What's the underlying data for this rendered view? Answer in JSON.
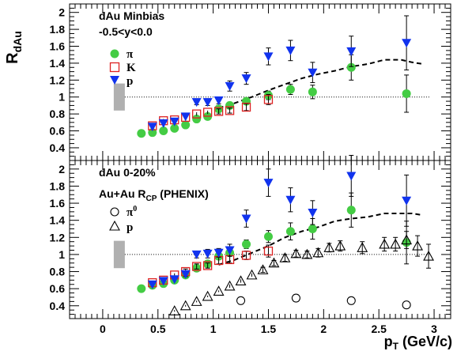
{
  "chart_data": {
    "type": "scatter",
    "ylabel": {
      "main": "R",
      "sub": "dAu"
    },
    "xlabel": {
      "main": "p",
      "sub": "T",
      "rest": " (GeV/c)"
    },
    "xlim": [
      -0.3,
      3.15
    ],
    "xticks": [
      "0",
      "0.5",
      "1",
      "1.5",
      "2",
      "2.5",
      "3"
    ],
    "grid": false,
    "panels": [
      {
        "id": "top",
        "ylim": [
          0.25,
          2.1
        ],
        "yticks": [
          "0.4",
          "0.6",
          "0.8",
          "1",
          "1.2",
          "1.4",
          "1.6",
          "1.8",
          "2"
        ],
        "texts": [
          "dAu Minbias",
          "-0.5<y<0.0"
        ],
        "legend": [
          {
            "marker": "green-circle",
            "label": "π"
          },
          {
            "marker": "red-open-square",
            "label": "K"
          },
          {
            "marker": "blue-down-triangle",
            "label": "p"
          }
        ],
        "sys_band": {
          "x": 0.15,
          "ylow": 0.84,
          "yhigh": 1.16,
          "color": "#b0b0b0"
        },
        "reference_line": 1.0,
        "series": [
          {
            "name": "π",
            "color": "#44cc44",
            "marker": "circle",
            "points": [
              [
                0.35,
                0.57
              ],
              [
                0.45,
                0.58
              ],
              [
                0.55,
                0.6
              ],
              [
                0.65,
                0.63
              ],
              [
                0.75,
                0.67
              ],
              [
                0.85,
                0.74
              ],
              [
                0.95,
                0.77
              ],
              [
                1.05,
                0.86
              ],
              [
                1.15,
                0.9
              ],
              [
                1.3,
                0.95
              ],
              [
                1.5,
                1.02
              ],
              [
                1.7,
                1.09
              ],
              [
                1.9,
                1.06
              ],
              [
                2.25,
                1.35
              ],
              [
                2.75,
                1.04
              ]
            ],
            "errors": [
              0.01,
              0.01,
              0.01,
              0.01,
              0.01,
              0.01,
              0.01,
              0.02,
              0.02,
              0.03,
              0.05,
              0.06,
              0.08,
              0.15,
              0.22
            ]
          },
          {
            "name": "K",
            "color": "#dd2222",
            "marker": "open-square",
            "points": [
              [
                0.45,
                0.66
              ],
              [
                0.55,
                0.72
              ],
              [
                0.65,
                0.73
              ],
              [
                0.75,
                0.76
              ],
              [
                0.85,
                0.8
              ],
              [
                0.95,
                0.82
              ],
              [
                1.05,
                0.83
              ],
              [
                1.15,
                0.84
              ],
              [
                1.3,
                0.88
              ],
              [
                1.5,
                0.97
              ]
            ],
            "errors": [
              0.02,
              0.02,
              0.02,
              0.02,
              0.02,
              0.02,
              0.03,
              0.03,
              0.04,
              0.06
            ]
          },
          {
            "name": "p",
            "color": "#1133ee",
            "marker": "down-triangle",
            "points": [
              [
                0.45,
                0.65
              ],
              [
                0.55,
                0.69
              ],
              [
                0.65,
                0.71
              ],
              [
                0.75,
                0.77
              ],
              [
                0.85,
                0.94
              ],
              [
                0.95,
                0.94
              ],
              [
                1.05,
                0.96
              ],
              [
                1.15,
                1.13
              ],
              [
                1.3,
                1.22
              ],
              [
                1.5,
                1.48
              ],
              [
                1.7,
                1.55
              ],
              [
                1.9,
                1.29
              ],
              [
                2.25,
                1.54
              ],
              [
                2.75,
                1.64
              ]
            ],
            "errors": [
              0.02,
              0.02,
              0.02,
              0.02,
              0.03,
              0.04,
              0.04,
              0.06,
              0.07,
              0.1,
              0.12,
              0.12,
              0.18,
              0.32
            ]
          }
        ],
        "dashed_curve": [
          [
            1.05,
            0.87
          ],
          [
            1.2,
            0.93
          ],
          [
            1.35,
            1.0
          ],
          [
            1.5,
            1.08
          ],
          [
            1.65,
            1.15
          ],
          [
            1.8,
            1.22
          ],
          [
            1.95,
            1.27
          ],
          [
            2.1,
            1.31
          ],
          [
            2.25,
            1.36
          ],
          [
            2.4,
            1.39
          ],
          [
            2.55,
            1.44
          ],
          [
            2.7,
            1.44
          ],
          [
            2.8,
            1.41
          ],
          [
            2.9,
            1.39
          ]
        ]
      },
      {
        "id": "bottom",
        "ylim": [
          0.25,
          2.1
        ],
        "yticks": [
          "0.4",
          "0.6",
          "0.8",
          "1",
          "1.2",
          "1.4",
          "1.6",
          "1.8",
          "2"
        ],
        "texts": [
          "dAu 0-20%"
        ],
        "legend_title": {
          "main": "Au+Au R",
          "sub": "CP",
          "rest": " (PHENIX)"
        },
        "legend": [
          {
            "marker": "open-circle",
            "label": "π",
            "sup": "0"
          },
          {
            "marker": "open-triangle",
            "label": "p"
          }
        ],
        "sys_band": {
          "x": 0.15,
          "ylow": 0.84,
          "yhigh": 1.16,
          "color": "#b0b0b0"
        },
        "reference_line": 1.0,
        "series": [
          {
            "name": "π",
            "color": "#44cc44",
            "marker": "circle",
            "points": [
              [
                0.35,
                0.6
              ],
              [
                0.45,
                0.64
              ],
              [
                0.55,
                0.66
              ],
              [
                0.65,
                0.7
              ],
              [
                0.75,
                0.76
              ],
              [
                0.85,
                0.84
              ],
              [
                0.95,
                0.89
              ],
              [
                1.05,
                0.98
              ],
              [
                1.15,
                1.02
              ],
              [
                1.3,
                1.12
              ],
              [
                1.5,
                1.21
              ],
              [
                1.7,
                1.27
              ],
              [
                1.9,
                1.3
              ],
              [
                2.25,
                1.52
              ],
              [
                2.75,
                1.14
              ]
            ],
            "errors": [
              0.01,
              0.01,
              0.01,
              0.01,
              0.01,
              0.02,
              0.02,
              0.03,
              0.03,
              0.05,
              0.07,
              0.1,
              0.12,
              0.2,
              0.25
            ]
          },
          {
            "name": "K",
            "color": "#dd2222",
            "marker": "open-square",
            "points": [
              [
                0.45,
                0.67
              ],
              [
                0.55,
                0.7
              ],
              [
                0.65,
                0.76
              ],
              [
                0.75,
                0.8
              ],
              [
                0.85,
                0.86
              ],
              [
                0.95,
                0.87
              ],
              [
                1.05,
                0.93
              ],
              [
                1.15,
                0.94
              ],
              [
                1.3,
                0.99
              ],
              [
                1.5,
                1.04
              ]
            ],
            "errors": [
              0.02,
              0.02,
              0.02,
              0.03,
              0.03,
              0.03,
              0.04,
              0.04,
              0.05,
              0.07
            ]
          },
          {
            "name": "p",
            "color": "#1133ee",
            "marker": "down-triangle",
            "points": [
              [
                0.45,
                0.65
              ],
              [
                0.55,
                0.69
              ],
              [
                0.65,
                0.71
              ],
              [
                0.75,
                0.77
              ],
              [
                0.85,
                1.0
              ],
              [
                0.95,
                1.01
              ],
              [
                1.05,
                1.02
              ],
              [
                1.15,
                1.05
              ],
              [
                1.3,
                1.42
              ],
              [
                1.5,
                1.84
              ],
              [
                1.7,
                1.64
              ],
              [
                1.9,
                1.49
              ],
              [
                2.25,
                1.92
              ],
              [
                2.75,
                1.63
              ]
            ],
            "errors": [
              0.02,
              0.02,
              0.02,
              0.03,
              0.04,
              0.05,
              0.05,
              0.07,
              0.1,
              0.16,
              0.14,
              0.14,
              0.24,
              0.3
            ]
          },
          {
            "name": "π0 PHENIX",
            "color": "#000000",
            "marker": "open-circle",
            "points": [
              [
                1.25,
                0.46
              ],
              [
                1.75,
                0.49
              ],
              [
                2.25,
                0.46
              ],
              [
                2.75,
                0.41
              ]
            ],
            "errors": [
              0.04,
              0.04,
              0.04,
              0.03
            ]
          },
          {
            "name": "p PHENIX",
            "color": "#000000",
            "marker": "open-triangle",
            "points": [
              [
                0.65,
                0.34
              ],
              [
                0.75,
                0.4
              ],
              [
                0.85,
                0.45
              ],
              [
                0.95,
                0.51
              ],
              [
                1.05,
                0.57
              ],
              [
                1.15,
                0.63
              ],
              [
                1.25,
                0.69
              ],
              [
                1.35,
                0.76
              ],
              [
                1.45,
                0.82
              ],
              [
                1.55,
                0.9
              ],
              [
                1.65,
                0.96
              ],
              [
                1.75,
                1.01
              ],
              [
                1.85,
                1.0
              ],
              [
                1.95,
                1.02
              ],
              [
                2.05,
                1.08
              ],
              [
                2.15,
                1.1
              ],
              [
                2.35,
                1.08
              ],
              [
                2.55,
                1.12
              ],
              [
                2.65,
                1.12
              ],
              [
                2.75,
                1.17
              ],
              [
                2.85,
                1.1
              ],
              [
                2.95,
                0.98
              ]
            ],
            "errors": [
              0.01,
              0.01,
              0.01,
              0.01,
              0.01,
              0.02,
              0.02,
              0.02,
              0.03,
              0.03,
              0.04,
              0.04,
              0.04,
              0.05,
              0.05,
              0.06,
              0.07,
              0.08,
              0.08,
              0.1,
              0.12,
              0.14
            ]
          }
        ],
        "dashed_curve": [
          [
            1.05,
            0.88
          ],
          [
            1.2,
            0.94
          ],
          [
            1.35,
            1.02
          ],
          [
            1.5,
            1.1
          ],
          [
            1.65,
            1.2
          ],
          [
            1.8,
            1.27
          ],
          [
            1.95,
            1.32
          ],
          [
            2.1,
            1.39
          ],
          [
            2.25,
            1.42
          ],
          [
            2.4,
            1.44
          ],
          [
            2.55,
            1.48
          ],
          [
            2.7,
            1.48
          ],
          [
            2.8,
            1.48
          ],
          [
            2.9,
            1.46
          ]
        ]
      }
    ]
  }
}
